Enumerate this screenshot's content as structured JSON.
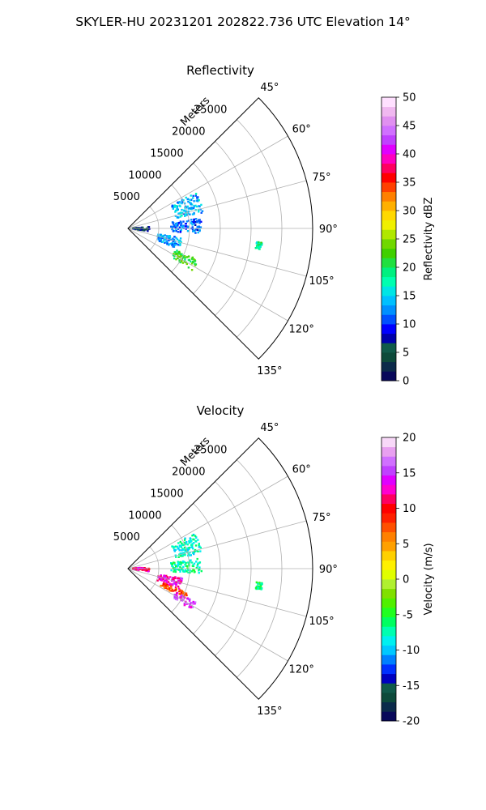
{
  "figure": {
    "suptitle": "SKYLER-HU  20231201  202822.736 UTC Elevation 14°"
  },
  "chart_data": [
    {
      "type": "heatmap",
      "projection": "polar-sector",
      "title": "Reflectivity",
      "radial_label": "Meters",
      "radial_ticks": [
        "5000",
        "10000",
        "15000",
        "20000",
        "25000"
      ],
      "angle_ticks": [
        "45°",
        "60°",
        "75°",
        "90°",
        "105°",
        "120°",
        "135°"
      ],
      "angle_range_deg": [
        45,
        135
      ],
      "radial_range_m": [
        0,
        30000
      ],
      "grid": true,
      "colorbar": {
        "label": "Reflectivity dBZ",
        "range": [
          0,
          50
        ],
        "ticks": [
          "0",
          "5",
          "10",
          "15",
          "20",
          "25",
          "30",
          "35",
          "40",
          "45",
          "50"
        ]
      },
      "echo_regions": [
        {
          "az_deg": [
            62,
            78
          ],
          "range_m": [
            8000,
            12500
          ],
          "value": 14
        },
        {
          "az_deg": [
            82,
            94
          ],
          "range_m": [
            7000,
            12000
          ],
          "value": 11
        },
        {
          "az_deg": [
            100,
            112
          ],
          "range_m": [
            5000,
            9000
          ],
          "value": 13
        },
        {
          "az_deg": [
            114,
            123
          ],
          "range_m": [
            8500,
            12500
          ],
          "value": 22
        },
        {
          "az_deg": [
            96,
            99
          ],
          "range_m": [
            21000,
            22000
          ],
          "value": 19
        },
        {
          "az_deg": [
            86,
            98
          ],
          "range_m": [
            800,
            3500
          ],
          "value": 6
        }
      ]
    },
    {
      "type": "heatmap",
      "projection": "polar-sector",
      "title": "Velocity",
      "radial_label": "Meters",
      "radial_ticks": [
        "5000",
        "10000",
        "15000",
        "20000",
        "25000"
      ],
      "angle_ticks": [
        "45°",
        "60°",
        "75°",
        "90°",
        "105°",
        "120°",
        "135°"
      ],
      "angle_range_deg": [
        45,
        135
      ],
      "radial_range_m": [
        0,
        30000
      ],
      "grid": true,
      "colorbar": {
        "label": "Velocity (m/s)",
        "range": [
          -20,
          20
        ],
        "ticks": [
          "-20",
          "-15",
          "-10",
          "-5",
          "0",
          "5",
          "10",
          "15",
          "20"
        ]
      },
      "echo_regions": [
        {
          "az_deg": [
            62,
            78
          ],
          "range_m": [
            8000,
            12500
          ],
          "value": -8
        },
        {
          "az_deg": [
            82,
            94
          ],
          "range_m": [
            7000,
            12000
          ],
          "value": -7
        },
        {
          "az_deg": [
            100,
            112
          ],
          "range_m": [
            5000,
            9000
          ],
          "value": 13
        },
        {
          "az_deg": [
            112,
            118
          ],
          "range_m": [
            6000,
            10500
          ],
          "value": 8
        },
        {
          "az_deg": [
            116,
            123
          ],
          "range_m": [
            8500,
            12500
          ],
          "value": 15
        },
        {
          "az_deg": [
            96,
            99
          ],
          "range_m": [
            21000,
            22000
          ],
          "value": -6
        },
        {
          "az_deg": [
            86,
            98
          ],
          "range_m": [
            800,
            3500
          ],
          "value": 12
        }
      ]
    }
  ]
}
